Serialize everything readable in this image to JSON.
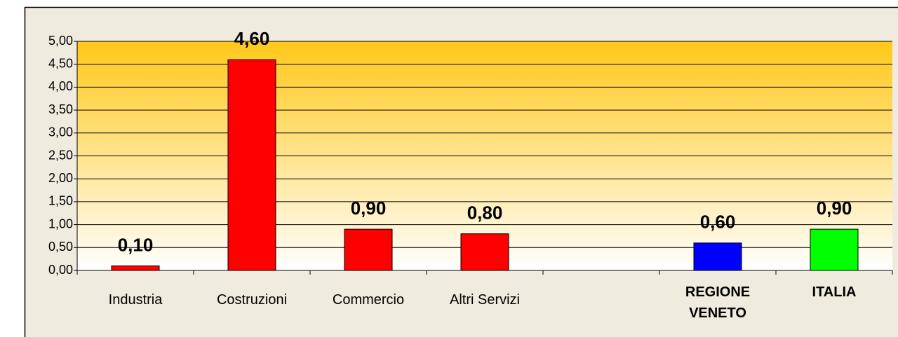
{
  "chart_data": {
    "type": "bar",
    "categories": [
      "Industria",
      "Costruzioni",
      "Commercio",
      "Altri Servizi",
      null,
      "REGIONE VENETO",
      "ITALIA"
    ],
    "values": [
      0.1,
      4.6,
      0.9,
      0.8,
      null,
      0.6,
      0.9
    ],
    "value_labels": [
      "0,10",
      "4,60",
      "0,90",
      "0,80",
      null,
      "0,60",
      "0,90"
    ],
    "colors": [
      "#ff0000",
      "#ff0000",
      "#ff0000",
      "#ff0000",
      null,
      "#0000ff",
      "#00ff00"
    ],
    "ylim": [
      0,
      5
    ],
    "yticks": [
      {
        "value": 0,
        "label": "0,00"
      },
      {
        "value": 0.5,
        "label": "0,50"
      },
      {
        "value": 1,
        "label": "1,00"
      },
      {
        "value": 1.5,
        "label": "1,50"
      },
      {
        "value": 2,
        "label": "2,00"
      },
      {
        "value": 2.5,
        "label": "2,50"
      },
      {
        "value": 3,
        "label": "3,00"
      },
      {
        "value": 3.5,
        "label": "3,50"
      },
      {
        "value": 4,
        "label": "4,00"
      },
      {
        "value": 4.5,
        "label": "4,50"
      },
      {
        "value": 5,
        "label": "5,00"
      }
    ],
    "grid": true
  }
}
